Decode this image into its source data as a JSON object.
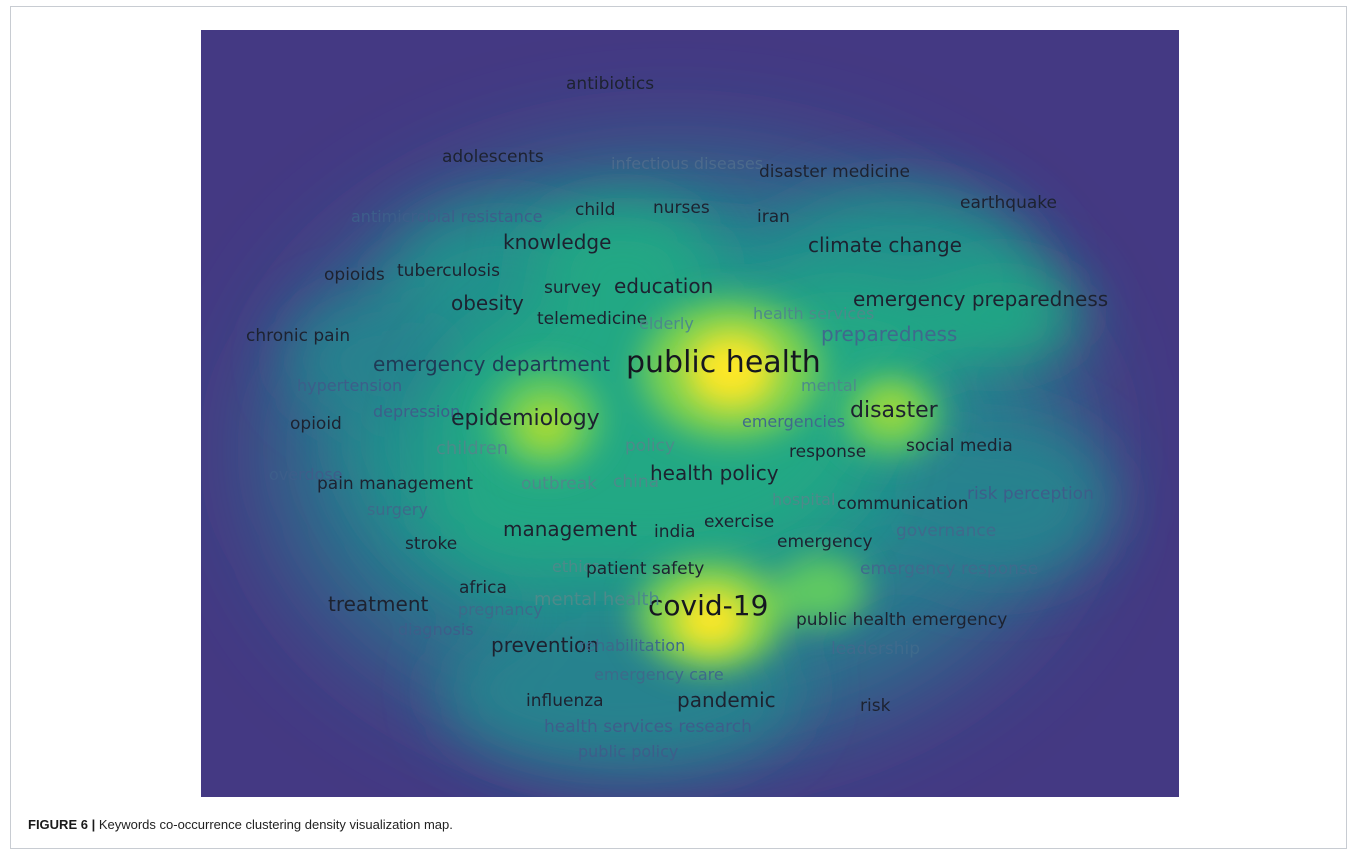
{
  "figure": {
    "caption_label": "FIGURE 6 |",
    "caption_text": " Keywords co-occurrence clustering density visualization map."
  },
  "colors": {
    "background": "#443983",
    "low": "#2a788e",
    "mid": "#22a884",
    "high": "#7ad151",
    "peak": "#fde725",
    "label_strong": "#1e1e2a",
    "label_faint": "#4a6a8a"
  },
  "keywords": [
    {
      "label": "antibiotics",
      "weight": "medium"
    },
    {
      "label": "adolescents",
      "weight": "medium"
    },
    {
      "label": "infectious diseases",
      "weight": "faint"
    },
    {
      "label": "disaster medicine",
      "weight": "medium"
    },
    {
      "label": "earthquake",
      "weight": "medium"
    },
    {
      "label": "antimicrobial resistance",
      "weight": "faint"
    },
    {
      "label": "child",
      "weight": "medium"
    },
    {
      "label": "nurses",
      "weight": "medium"
    },
    {
      "label": "iran",
      "weight": "medium"
    },
    {
      "label": "knowledge",
      "weight": "strong"
    },
    {
      "label": "climate change",
      "weight": "strong"
    },
    {
      "label": "opioids",
      "weight": "medium"
    },
    {
      "label": "tuberculosis",
      "weight": "medium"
    },
    {
      "label": "survey",
      "weight": "medium"
    },
    {
      "label": "education",
      "weight": "strong"
    },
    {
      "label": "obesity",
      "weight": "strong"
    },
    {
      "label": "emergency preparedness",
      "weight": "strong"
    },
    {
      "label": "telemedicine",
      "weight": "medium"
    },
    {
      "label": "elderly",
      "weight": "faint"
    },
    {
      "label": "health services",
      "weight": "faint"
    },
    {
      "label": "chronic pain",
      "weight": "medium"
    },
    {
      "label": "preparedness",
      "weight": "faint"
    },
    {
      "label": "emergency department",
      "weight": "strong"
    },
    {
      "label": "public health",
      "weight": "top"
    },
    {
      "label": "hypertension",
      "weight": "faint"
    },
    {
      "label": "mental",
      "weight": "faint"
    },
    {
      "label": "opioid",
      "weight": "medium"
    },
    {
      "label": "depression",
      "weight": "faint"
    },
    {
      "label": "epidemiology",
      "weight": "strong"
    },
    {
      "label": "emergencies",
      "weight": "faint"
    },
    {
      "label": "disaster",
      "weight": "strong"
    },
    {
      "label": "children",
      "weight": "faint"
    },
    {
      "label": "policy",
      "weight": "faint"
    },
    {
      "label": "response",
      "weight": "medium"
    },
    {
      "label": "social media",
      "weight": "medium"
    },
    {
      "label": "overdose",
      "weight": "faint"
    },
    {
      "label": "pain management",
      "weight": "medium"
    },
    {
      "label": "outbreak",
      "weight": "faint"
    },
    {
      "label": "china",
      "weight": "faint"
    },
    {
      "label": "health policy",
      "weight": "strong"
    },
    {
      "label": "hospital",
      "weight": "faint"
    },
    {
      "label": "communication",
      "weight": "medium"
    },
    {
      "label": "risk perception",
      "weight": "faint"
    },
    {
      "label": "surgery",
      "weight": "faint"
    },
    {
      "label": "management",
      "weight": "strong"
    },
    {
      "label": "india",
      "weight": "medium"
    },
    {
      "label": "exercise",
      "weight": "medium"
    },
    {
      "label": "governance",
      "weight": "faint"
    },
    {
      "label": "stroke",
      "weight": "medium"
    },
    {
      "label": "emergency",
      "weight": "medium"
    },
    {
      "label": "ethics",
      "weight": "faint"
    },
    {
      "label": "patient safety",
      "weight": "medium"
    },
    {
      "label": "emergency response",
      "weight": "faint"
    },
    {
      "label": "africa",
      "weight": "medium"
    },
    {
      "label": "covid-19",
      "weight": "top"
    },
    {
      "label": "treatment",
      "weight": "strong"
    },
    {
      "label": "pregnancy",
      "weight": "faint"
    },
    {
      "label": "mental health",
      "weight": "faint"
    },
    {
      "label": "public health emergency",
      "weight": "medium"
    },
    {
      "label": "diagnosis",
      "weight": "faint"
    },
    {
      "label": "prevention",
      "weight": "strong"
    },
    {
      "label": "rehabilitation",
      "weight": "faint"
    },
    {
      "label": "leadership",
      "weight": "faint"
    },
    {
      "label": "emergency care",
      "weight": "faint"
    },
    {
      "label": "influenza",
      "weight": "medium"
    },
    {
      "label": "pandemic",
      "weight": "strong"
    },
    {
      "label": "risk",
      "weight": "medium"
    },
    {
      "label": "health services research",
      "weight": "faint"
    },
    {
      "label": "public policy",
      "weight": "faint"
    }
  ]
}
